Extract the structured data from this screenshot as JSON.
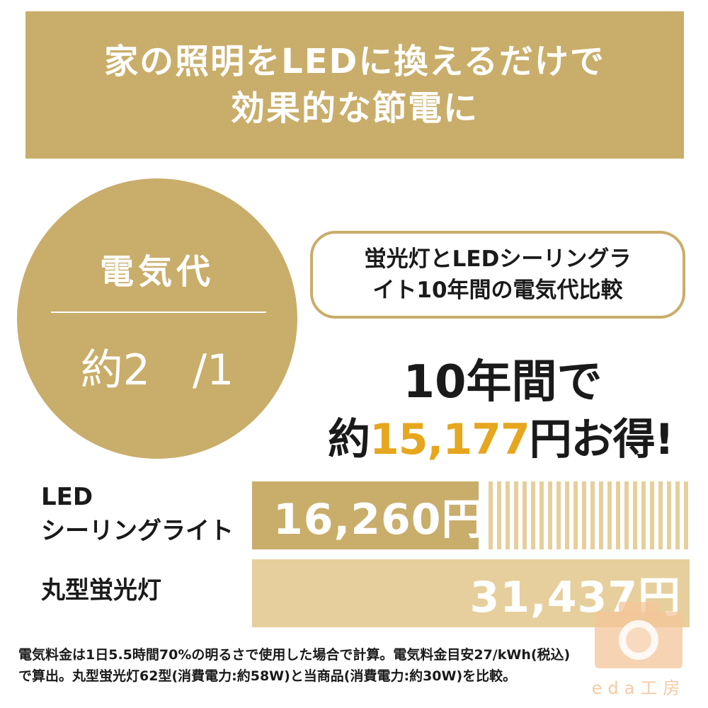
{
  "header": {
    "line1": "家の照明をLEDに換えるだけで",
    "line2": "効果的な節電に"
  },
  "circle": {
    "title": "電気代",
    "ratio": "約2　/1"
  },
  "comparison_box": {
    "line1": "蛍光灯とLEDシーリングラ",
    "line2": "イト10年間の電気代比較"
  },
  "savings": {
    "line1": "10年間で",
    "prefix": "約",
    "amount": "15,177",
    "suffix": "円お得!"
  },
  "bars": [
    {
      "label_line1": "LED",
      "label_line2": "シーリングライト",
      "value_text": "16,260円",
      "value": 16260,
      "fill_fraction": 0.517
    },
    {
      "label_line1": "丸型蛍光灯",
      "value_text": "31,437円",
      "value": 31437,
      "fill_fraction": 1.0
    }
  ],
  "footnote": {
    "line1": "電気料金は1日5.5時間70%の明るさで使用した場合で計算。電気料金目安27/kWh(税込)",
    "line2": "で算出。丸型蛍光灯62型(消費電力:約58W)と当商品(消費電力:約30W)を比較。"
  },
  "watermark": {
    "text": "eda工房",
    "icon": "camera-icon"
  },
  "colors": {
    "gold": "#c9ad6a",
    "light_gold": "#e6cf9c",
    "accent_orange": "#e6a61e",
    "watermark_peach": "#f3c59a"
  }
}
